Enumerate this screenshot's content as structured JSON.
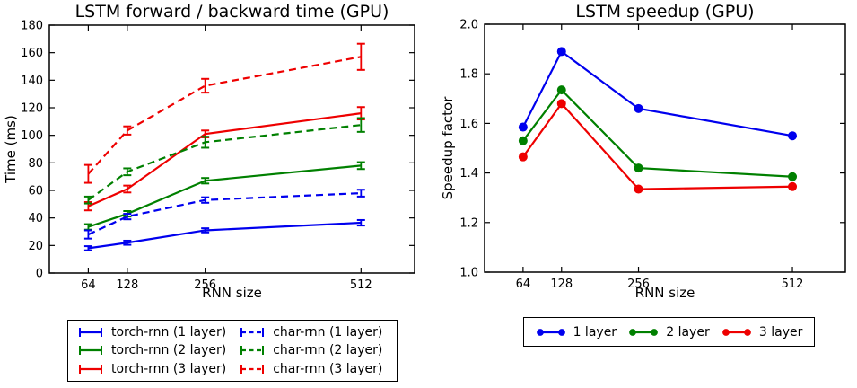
{
  "figure": {
    "background": "#ffffff",
    "axis_color": "#000000",
    "series_palette": {
      "blue": "#0000ee",
      "green": "#008000",
      "red": "#ee0000"
    }
  },
  "chart_data": [
    {
      "type": "line",
      "title": "LSTM forward / backward time (GPU)",
      "xlabel": "RNN size",
      "ylabel": "Time (ms)",
      "x": [
        64,
        128,
        256,
        512
      ],
      "xticks": [
        64,
        128,
        256,
        512
      ],
      "xlim": [
        0,
        600
      ],
      "ylim": [
        0,
        180
      ],
      "yticks": [
        0,
        20,
        40,
        60,
        80,
        100,
        120,
        140,
        160,
        180
      ],
      "ytick_decimals": 0,
      "grid": false,
      "marker": "none",
      "errorbars": true,
      "legend_position": "below-left-2col",
      "series": [
        {
          "name": "torch-rnn (1 layer)",
          "color": "#0000ee",
          "dash": "solid",
          "values": [
            18,
            22,
            31,
            36.5
          ],
          "yerr": [
            1.5,
            1.5,
            1.5,
            2
          ]
        },
        {
          "name": "torch-rnn (2 layer)",
          "color": "#008000",
          "dash": "solid",
          "values": [
            33.5,
            43,
            67,
            78
          ],
          "yerr": [
            2,
            2,
            2,
            2.5
          ]
        },
        {
          "name": "torch-rnn (3 layer)",
          "color": "#ee0000",
          "dash": "solid",
          "values": [
            48.5,
            61,
            101,
            116
          ],
          "yerr": [
            3,
            2.5,
            2.5,
            4.5
          ]
        },
        {
          "name": "char-rnn (1 layer)",
          "color": "#0000ee",
          "dash": "dashed",
          "values": [
            28,
            41,
            53,
            58
          ],
          "yerr": [
            3,
            2,
            2,
            2.5
          ]
        },
        {
          "name": "char-rnn (2 layer)",
          "color": "#008000",
          "dash": "dashed",
          "values": [
            53,
            73.5,
            95,
            107.5
          ],
          "yerr": [
            2.5,
            2.5,
            4,
            5
          ]
        },
        {
          "name": "char-rnn (3 layer)",
          "color": "#ee0000",
          "dash": "dashed",
          "values": [
            72,
            103.5,
            136,
            157
          ],
          "yerr": [
            6.5,
            3,
            5,
            9.5
          ]
        }
      ]
    },
    {
      "type": "line",
      "title": "LSTM speedup (GPU)",
      "xlabel": "RNN size",
      "ylabel": "Speedup factor",
      "x": [
        64,
        128,
        256,
        512
      ],
      "xticks": [
        64,
        128,
        256,
        512
      ],
      "xlim": [
        0,
        600
      ],
      "ylim": [
        1.0,
        2.0
      ],
      "yticks": [
        1.0,
        1.2,
        1.4,
        1.6,
        1.8,
        2.0
      ],
      "ytick_decimals": 1,
      "grid": false,
      "marker": "circle",
      "errorbars": false,
      "legend_position": "below-center-row",
      "series": [
        {
          "name": "1 layer",
          "color": "#0000ee",
          "dash": "solid",
          "values": [
            1.585,
            1.89,
            1.66,
            1.55
          ]
        },
        {
          "name": "2 layer",
          "color": "#008000",
          "dash": "solid",
          "values": [
            1.53,
            1.735,
            1.42,
            1.385
          ]
        },
        {
          "name": "3 layer",
          "color": "#ee0000",
          "dash": "solid",
          "values": [
            1.465,
            1.68,
            1.335,
            1.345
          ]
        }
      ]
    }
  ]
}
